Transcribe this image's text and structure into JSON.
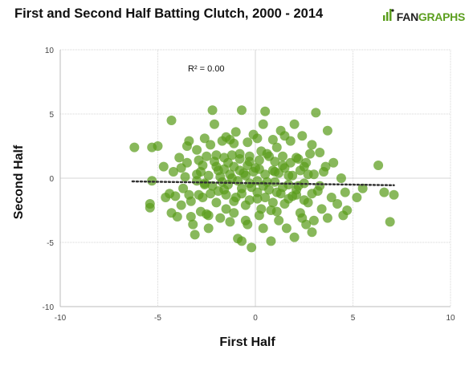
{
  "header": {
    "title": "First and Second Half Batting Clutch, 2000 - 2014"
  },
  "brand": {
    "text_left": "FAN",
    "text_right": "GRAPHS",
    "icon": "fangraphs-logo-icon",
    "color_left": "#222222",
    "color_right": "#5c9f1f"
  },
  "colors": {
    "point": "#5a9c1c",
    "grid": "#d6d6d6",
    "axis": "#bbbbbb",
    "trendline": "#333333"
  },
  "chart_data": {
    "type": "scatter",
    "title": "First and Second Half Batting Clutch, 2000 - 2014",
    "xlabel": "First Half",
    "ylabel": "Second Half",
    "xlim": [
      -10,
      10
    ],
    "ylim": [
      -10,
      10
    ],
    "xticks": [
      "-10",
      "-5",
      "0",
      "5",
      "10"
    ],
    "yticks": [
      "10",
      "5",
      "0",
      "-5",
      "-10"
    ],
    "grid": true,
    "annotation": "R² = 0.00",
    "trendline": {
      "x": [
        -6.3,
        7.1
      ],
      "y": [
        -0.25,
        -0.55
      ]
    },
    "points": [
      [
        -6.2,
        2.4
      ],
      [
        -5.3,
        2.4
      ],
      [
        -5.0,
        2.5
      ],
      [
        -5.4,
        -2.0
      ],
      [
        -5.4,
        -2.3
      ],
      [
        -5.3,
        -0.2
      ],
      [
        -4.3,
        4.5
      ],
      [
        -4.4,
        -1.2
      ],
      [
        -4.3,
        -2.7
      ],
      [
        -4.1,
        -1.4
      ],
      [
        -4.0,
        -3.0
      ],
      [
        -4.2,
        0.5
      ],
      [
        -3.9,
        1.6
      ],
      [
        -3.8,
        0.8
      ],
      [
        -3.7,
        -0.8
      ],
      [
        -3.5,
        2.5
      ],
      [
        -3.4,
        2.9
      ],
      [
        -3.3,
        -1.8
      ],
      [
        -3.3,
        -3.0
      ],
      [
        -3.2,
        -3.6
      ],
      [
        -3.1,
        -4.4
      ],
      [
        -3.0,
        0.3
      ],
      [
        -3.0,
        2.2
      ],
      [
        -2.9,
        -1.3
      ],
      [
        -2.8,
        -2.6
      ],
      [
        -2.7,
        1.0
      ],
      [
        -2.6,
        -0.5
      ],
      [
        -2.5,
        -2.8
      ],
      [
        -2.4,
        -3.9
      ],
      [
        -2.3,
        2.6
      ],
      [
        -2.2,
        5.3
      ],
      [
        -2.1,
        4.2
      ],
      [
        -2.0,
        1.8
      ],
      [
        -2.0,
        -1.9
      ],
      [
        -1.9,
        0.6
      ],
      [
        -1.8,
        -3.1
      ],
      [
        -1.7,
        2.9
      ],
      [
        -1.6,
        -0.9
      ],
      [
        -1.5,
        3.2
      ],
      [
        -1.5,
        -2.4
      ],
      [
        -1.4,
        1.2
      ],
      [
        -1.3,
        -3.4
      ],
      [
        -1.2,
        0.0
      ],
      [
        -1.1,
        2.7
      ],
      [
        -1.0,
        -1.5
      ],
      [
        -1.0,
        3.6
      ],
      [
        -0.9,
        -4.7
      ],
      [
        -0.8,
        1.9
      ],
      [
        -0.7,
        -4.9
      ],
      [
        -0.7,
        5.3
      ],
      [
        -0.6,
        0.4
      ],
      [
        -0.5,
        -2.1
      ],
      [
        -0.4,
        2.8
      ],
      [
        -0.4,
        -3.6
      ],
      [
        -0.3,
        1.3
      ],
      [
        -0.2,
        -0.7
      ],
      [
        -0.2,
        -5.4
      ],
      [
        -0.1,
        3.4
      ],
      [
        0.0,
        0.8
      ],
      [
        0.1,
        -1.6
      ],
      [
        0.2,
        -2.9
      ],
      [
        0.3,
        2.1
      ],
      [
        0.4,
        -3.9
      ],
      [
        0.4,
        4.2
      ],
      [
        0.5,
        5.2
      ],
      [
        0.6,
        -0.3
      ],
      [
        0.7,
        1.7
      ],
      [
        0.8,
        -2.5
      ],
      [
        0.8,
        -4.9
      ],
      [
        0.9,
        3.0
      ],
      [
        1.0,
        0.5
      ],
      [
        1.1,
        -1.1
      ],
      [
        1.1,
        2.4
      ],
      [
        1.2,
        -3.3
      ],
      [
        1.3,
        3.7
      ],
      [
        1.4,
        1.0
      ],
      [
        1.5,
        -2.0
      ],
      [
        1.6,
        -3.9
      ],
      [
        1.7,
        0.2
      ],
      [
        1.8,
        2.9
      ],
      [
        1.9,
        -1.4
      ],
      [
        2.0,
        4.2
      ],
      [
        2.0,
        -4.6
      ],
      [
        2.1,
        1.6
      ],
      [
        2.2,
        -0.6
      ],
      [
        2.3,
        -2.7
      ],
      [
        2.4,
        3.3
      ],
      [
        2.5,
        0.9
      ],
      [
        2.6,
        -3.6
      ],
      [
        2.7,
        -1.9
      ],
      [
        2.8,
        1.9
      ],
      [
        2.9,
        -4.2
      ],
      [
        3.0,
        0.3
      ],
      [
        3.1,
        5.1
      ],
      [
        3.2,
        -1.0
      ],
      [
        3.3,
        2.0
      ],
      [
        3.4,
        -2.4
      ],
      [
        3.6,
        0.9
      ],
      [
        3.7,
        -3.1
      ],
      [
        3.7,
        3.7
      ],
      [
        3.9,
        -1.5
      ],
      [
        4.0,
        1.2
      ],
      [
        4.2,
        -2.0
      ],
      [
        4.4,
        0.0
      ],
      [
        4.5,
        -2.9
      ],
      [
        4.6,
        -1.1
      ],
      [
        4.7,
        -2.5
      ],
      [
        5.2,
        -1.5
      ],
      [
        5.5,
        -0.8
      ],
      [
        6.3,
        1.0
      ],
      [
        6.6,
        -1.1
      ],
      [
        6.9,
        -3.4
      ],
      [
        7.1,
        -1.3
      ],
      [
        -3.6,
        0.1
      ],
      [
        -3.0,
        -0.2
      ],
      [
        -2.8,
        0.5
      ],
      [
        -2.6,
        -0.4
      ],
      [
        -2.4,
        0.2
      ],
      [
        -2.2,
        -0.6
      ],
      [
        -2.0,
        0.9
      ],
      [
        -1.8,
        0.1
      ],
      [
        -1.7,
        -0.3
      ],
      [
        -1.6,
        0.7
      ],
      [
        -1.4,
        -0.5
      ],
      [
        -1.3,
        0.3
      ],
      [
        -1.1,
        0.9
      ],
      [
        -0.9,
        -0.2
      ],
      [
        -0.8,
        0.6
      ],
      [
        -0.7,
        -0.8
      ],
      [
        -0.5,
        0.2
      ],
      [
        -0.4,
        1.0
      ],
      [
        -0.3,
        -0.4
      ],
      [
        -0.1,
        0.5
      ],
      [
        0.1,
        -0.2
      ],
      [
        0.2,
        0.7
      ],
      [
        0.4,
        -0.6
      ],
      [
        0.5,
        0.3
      ],
      [
        0.7,
        -0.9
      ],
      [
        0.9,
        0.6
      ],
      [
        1.0,
        -0.3
      ],
      [
        1.2,
        0.4
      ],
      [
        1.4,
        -0.7
      ],
      [
        1.5,
        0.8
      ],
      [
        1.7,
        -0.5
      ],
      [
        1.9,
        0.2
      ],
      [
        2.1,
        -0.9
      ],
      [
        2.3,
        0.6
      ],
      [
        2.5,
        -0.4
      ],
      [
        2.7,
        0.3
      ],
      [
        -2.9,
        1.4
      ],
      [
        -2.5,
        1.7
      ],
      [
        -2.1,
        1.3
      ],
      [
        -1.6,
        1.6
      ],
      [
        -1.2,
        1.8
      ],
      [
        -0.8,
        1.5
      ],
      [
        -0.3,
        1.7
      ],
      [
        0.2,
        1.4
      ],
      [
        0.6,
        1.9
      ],
      [
        1.0,
        1.3
      ],
      [
        1.4,
        1.7
      ],
      [
        1.8,
        1.2
      ],
      [
        2.2,
        1.5
      ],
      [
        2.6,
        1.2
      ],
      [
        -2.7,
        -1.5
      ],
      [
        -2.3,
        -1.2
      ],
      [
        -1.9,
        -1.0
      ],
      [
        -1.5,
        -1.3
      ],
      [
        -1.1,
        -1.8
      ],
      [
        -0.7,
        -1.2
      ],
      [
        -0.3,
        -1.7
      ],
      [
        0.1,
        -1.1
      ],
      [
        0.5,
        -1.5
      ],
      [
        0.9,
        -1.9
      ],
      [
        1.3,
        -1.2
      ],
      [
        1.7,
        -1.6
      ],
      [
        2.1,
        -1.3
      ],
      [
        2.5,
        -1.7
      ],
      [
        2.9,
        -1.2
      ],
      [
        3.3,
        -0.6
      ],
      [
        3.5,
        0.5
      ],
      [
        -3.4,
        -1.3
      ],
      [
        -3.8,
        -2.1
      ],
      [
        -3.5,
        1.2
      ],
      [
        -4.6,
        -1.5
      ],
      [
        -4.7,
        0.9
      ],
      [
        -2.6,
        3.1
      ],
      [
        -1.3,
        3.0
      ],
      [
        0.1,
        3.1
      ],
      [
        1.5,
        3.3
      ],
      [
        2.9,
        2.6
      ],
      [
        -2.4,
        -2.9
      ],
      [
        -1.1,
        -2.7
      ],
      [
        0.3,
        -2.4
      ],
      [
        1.1,
        -2.6
      ],
      [
        2.4,
        -3.1
      ],
      [
        3.0,
        -3.3
      ],
      [
        -0.5,
        -3.3
      ]
    ]
  }
}
